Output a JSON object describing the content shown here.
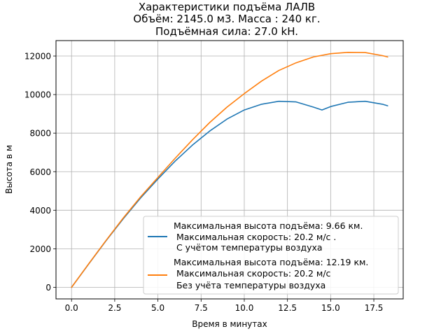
{
  "chart_data": {
    "type": "line",
    "title_lines": [
      "Характеристики  подъёма ЛАЛВ",
      "Объём: 2145.0 м3. Масса : 240 кг.",
      "Подъёмная сила: 27.0 kH."
    ],
    "xlabel": "Время в минутах",
    "ylabel": "Высота в м",
    "xlim": [
      -0.9,
      19.2
    ],
    "ylim": [
      -600,
      12800
    ],
    "xticks": [
      0.0,
      2.5,
      5.0,
      7.5,
      10.0,
      12.5,
      15.0,
      17.5
    ],
    "xtick_labels": [
      "0.0",
      "2.5",
      "5.0",
      "7.5",
      "10.0",
      "12.5",
      "15.0",
      "17.5"
    ],
    "yticks": [
      0,
      2000,
      4000,
      6000,
      8000,
      10000,
      12000
    ],
    "ytick_labels": [
      "0",
      "2000",
      "4000",
      "6000",
      "8000",
      "10000",
      "12000"
    ],
    "grid": true,
    "legend_position": "lower-right",
    "series": [
      {
        "legend_lines": [
          "Максимальная высота подъёма: 9.66 км.",
          " Максимальная скорость: 20.2 м/с .",
          " С учётом температуры воздуха"
        ],
        "color": "#1f77b4",
        "x": [
          0,
          1,
          2,
          3,
          4,
          5,
          6,
          7,
          8,
          9,
          10,
          11,
          12,
          13,
          14,
          14.5,
          15,
          16,
          17,
          18,
          18.3
        ],
        "y": [
          0,
          1220,
          2420,
          3560,
          4640,
          5620,
          6550,
          7380,
          8110,
          8730,
          9200,
          9500,
          9650,
          9620,
          9350,
          9200,
          9380,
          9600,
          9650,
          9500,
          9420
        ]
      },
      {
        "legend_lines": [
          "Максимальная высота подъёма: 12.19 км.",
          " Максимальная скорость: 20.2 м/с",
          " Без учёта температуры воздуха"
        ],
        "color": "#ff7f0e",
        "x": [
          0,
          1,
          2,
          3,
          4,
          5,
          6,
          7,
          8,
          9,
          10,
          11,
          12,
          13,
          14,
          15,
          16,
          17,
          18,
          18.3
        ],
        "y": [
          0,
          1230,
          2440,
          3600,
          4700,
          5700,
          6700,
          7650,
          8550,
          9350,
          10050,
          10700,
          11250,
          11650,
          11950,
          12120,
          12190,
          12180,
          12020,
          11950
        ]
      }
    ]
  }
}
